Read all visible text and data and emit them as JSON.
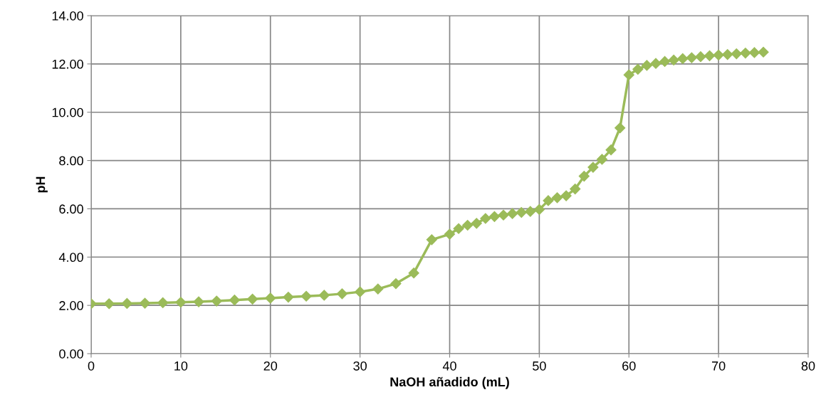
{
  "chart_data": {
    "type": "line",
    "xlabel": "NaOH añadido (mL)",
    "ylabel": "pH",
    "x": [
      0,
      2,
      4,
      6,
      8,
      10,
      12,
      14,
      16,
      18,
      20,
      22,
      24,
      26,
      28,
      30,
      32,
      34,
      36,
      38,
      40,
      41,
      42,
      43,
      44,
      45,
      46,
      47,
      48,
      49,
      50,
      51,
      52,
      53,
      54,
      55,
      56,
      57,
      58,
      59,
      60,
      61,
      62,
      63,
      64,
      65,
      66,
      67,
      68,
      69,
      70,
      71,
      72,
      73,
      74,
      75
    ],
    "series": [
      {
        "color": "#9bbb59",
        "values": [
          2.07,
          2.07,
          2.08,
          2.09,
          2.11,
          2.13,
          2.15,
          2.18,
          2.22,
          2.26,
          2.3,
          2.34,
          2.38,
          2.42,
          2.48,
          2.56,
          2.68,
          2.9,
          3.34,
          4.72,
          4.95,
          5.18,
          5.32,
          5.4,
          5.6,
          5.68,
          5.74,
          5.8,
          5.85,
          5.89,
          5.97,
          6.34,
          6.46,
          6.54,
          6.82,
          7.35,
          7.72,
          8.05,
          8.44,
          9.35,
          11.55,
          11.78,
          11.94,
          12.02,
          12.1,
          12.16,
          12.22,
          12.26,
          12.3,
          12.34,
          12.37,
          12.39,
          12.42,
          12.45,
          12.47,
          12.49
        ]
      }
    ],
    "xlim": [
      0,
      80
    ],
    "xticks": [
      0,
      10,
      20,
      30,
      40,
      50,
      60,
      70,
      80
    ],
    "ylim": [
      0,
      14
    ],
    "yticks": [
      {
        "value": 0,
        "label": "0.00"
      },
      {
        "value": 2,
        "label": "2.00"
      },
      {
        "value": 4,
        "label": "4.00"
      },
      {
        "value": 6,
        "label": "6.00"
      },
      {
        "value": 8,
        "label": "8.00"
      },
      {
        "value": 10,
        "label": "10.00"
      },
      {
        "value": 12,
        "label": "12.00"
      },
      {
        "value": 14,
        "label": "14.00"
      }
    ],
    "grid": true,
    "legend": false,
    "marker": "diamond",
    "line_style": "solid"
  }
}
